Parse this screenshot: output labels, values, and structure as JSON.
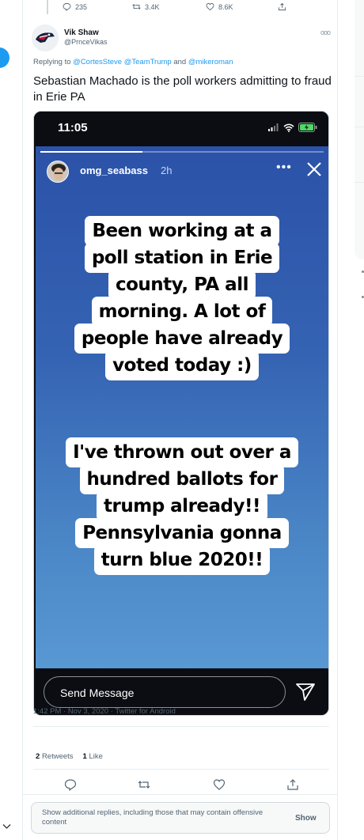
{
  "prev_tweet": {
    "replies": "235",
    "retweets": "3.4K",
    "likes": "8.6K"
  },
  "tweet": {
    "author_name": "Vik Shaw",
    "author_handle": "@PrnceVikas",
    "replying_prefix": "Replying to",
    "replying_mentions": "@CortesSteve @TeamTrump",
    "replying_and": "and",
    "replying_last": "@mikeroman",
    "text": "Sebastian Machado is the poll workers admitting to fraud in Erie PA",
    "meta": "1:42 PM · Nov 3, 2020 · Twitter for Android",
    "retweets_count": "2",
    "retweets_label": "Retweets",
    "likes_count": "1",
    "likes_label": "Like"
  },
  "media": {
    "phone_time": "11:05",
    "story_user": "omg_seabass",
    "story_age": "2h",
    "story_progress": 0.36,
    "caption_lines_1": [
      "Been working at a",
      "poll station in Erie",
      "county, PA all",
      "morning. A lot of",
      "people have already",
      "voted today :)"
    ],
    "caption_lines_2": [
      "I've thrown out over a",
      "hundred ballots for",
      "trump already!!",
      "Pennsylvania gonna",
      "turn blue 2020!!"
    ],
    "send_message": "Send Message"
  },
  "show_more": {
    "text": "Show additional replies, including those that may contain offensive content",
    "button": "Show"
  },
  "colors": {
    "accent": "#1d9bf0",
    "story_top": "#2b52a8",
    "story_bottom": "#5898d3"
  }
}
